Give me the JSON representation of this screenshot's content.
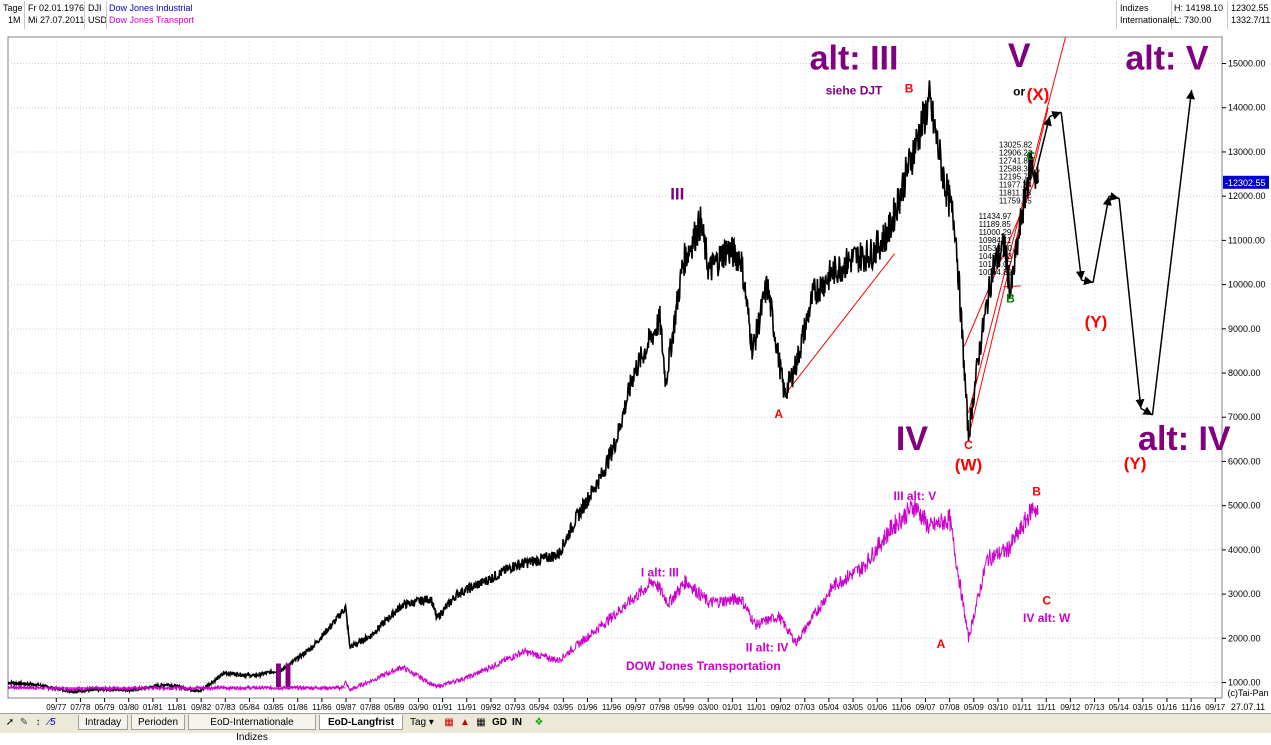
{
  "header": {
    "period_unit": "Tage",
    "start_date": "Fr 02.01.1976",
    "ticker_main": "DJI",
    "name_main": "Dow Jones Industrial",
    "interval": "1M",
    "end_date": "Mi 27.07.2011",
    "currency": "USD",
    "name_second": "Dow Jones Transport",
    "market_group": "Indizes",
    "market_sub": "Internationale",
    "high_label": "H: 14198.10",
    "low_label": "L: 730.00",
    "last_value": "12302.55",
    "last_value2": "1332.7/11"
  },
  "chart_data": {
    "type": "line",
    "xlabel": "",
    "ylabel": "",
    "ylim": [
      650,
      15600
    ],
    "x_range": [
      "1976-01",
      "2017-12"
    ],
    "grid": true,
    "legend_position": "top-left",
    "yticks": [
      1000,
      2000,
      3000,
      4000,
      5000,
      6000,
      7000,
      8000,
      9000,
      10000,
      11000,
      12000,
      13000,
      14000,
      15000
    ],
    "ytick_labels": [
      "1000.00",
      "2000.00",
      "3000.00",
      "4000.00",
      "5000.00",
      "6000.00",
      "7000.00",
      "8000.00",
      "9000.00",
      "10000.00",
      "11000.00",
      "12000.00",
      "13000.00",
      "14000.00",
      "15000.00"
    ],
    "xtick_labels": [
      "09/77",
      "07/78",
      "05/79",
      "03/80",
      "01/81",
      "11/81",
      "09/82",
      "07/83",
      "05/84",
      "03/85",
      "01/86",
      "11/86",
      "09/87",
      "07/88",
      "05/89",
      "03/90",
      "01/91",
      "11/91",
      "09/92",
      "07/93",
      "05/94",
      "03/95",
      "01/96",
      "11/96",
      "09/97",
      "07/98",
      "05/99",
      "03/00",
      "01/01",
      "11/01",
      "09/02",
      "07/03",
      "05/04",
      "03/05",
      "01/06",
      "11/06",
      "09/07",
      "07/08",
      "05/09",
      "03/10",
      "01/11",
      "11/11",
      "09/12",
      "07/13",
      "05/14",
      "03/15",
      "01/16",
      "11/16",
      "09/17"
    ],
    "last_price_label": "-12302.55",
    "credit": "(c)Tai-Pan",
    "end_date_label": "27.07.11",
    "series": [
      {
        "name": "Dow Jones Industrial",
        "color": "#000000",
        "x": [
          1976.0,
          1977.0,
          1978.2,
          1979.5,
          1980.3,
          1981.5,
          1982.6,
          1983.5,
          1984.5,
          1985.5,
          1986.5,
          1987.3,
          1987.65,
          1987.8,
          1988.5,
          1989.6,
          1990.6,
          1990.8,
          1991.5,
          1992.5,
          1993.5,
          1994.5,
          1995.0,
          1995.6,
          1996.5,
          1997.0,
          1997.6,
          1998.5,
          1998.7,
          1999.3,
          1999.9,
          2000.2,
          2000.8,
          2001.3,
          2001.7,
          2002.2,
          2002.8,
          2003.2,
          2003.8,
          2004.5,
          2005.2,
          2005.8,
          2006.4,
          2007.0,
          2007.8,
          2008.3,
          2008.7,
          2009.15,
          2009.5,
          2010.0,
          2010.4,
          2010.6,
          2011.0,
          2011.3,
          2011.55
        ],
        "y": [
          1000,
          950,
          800,
          850,
          830,
          960,
          800,
          1220,
          1150,
          1300,
          1800,
          2400,
          2700,
          1800,
          2050,
          2750,
          2900,
          2450,
          3000,
          3300,
          3650,
          3800,
          3900,
          4700,
          5700,
          6500,
          8000,
          9200,
          7800,
          10500,
          11400,
          10300,
          10800,
          10600,
          8500,
          10000,
          7500,
          8200,
          9800,
          10300,
          10600,
          10700,
          11200,
          12500,
          14150,
          12400,
          11300,
          6550,
          8400,
          10400,
          10900,
          9800,
          11600,
          12800,
          12300
        ]
      },
      {
        "name": "Dow Jones Transport",
        "color": "#cc00cc",
        "x": [
          1976.0,
          1978.0,
          1980.0,
          1982.6,
          1985.0,
          1987.5,
          1987.65,
          1987.8,
          1989.6,
          1990.8,
          1992.0,
          1993.8,
          1995.0,
          1996.5,
          1998.3,
          1998.8,
          1999.4,
          2000.2,
          2001.3,
          2001.8,
          2002.6,
          2003.2,
          2004.5,
          2005.5,
          2006.5,
          2007.3,
          2007.8,
          2008.5,
          2009.15,
          2009.8,
          2010.5,
          2011.0,
          2011.4,
          2011.55
        ],
        "y": [
          900,
          860,
          870,
          880,
          880,
          880,
          1000,
          830,
          1350,
          900,
          1150,
          1700,
          1500,
          2300,
          3300,
          2800,
          3300,
          2800,
          2900,
          2300,
          2500,
          1900,
          3200,
          3600,
          4500,
          5000,
          4500,
          4700,
          2000,
          3800,
          4000,
          4500,
          5000,
          4800
        ]
      }
    ],
    "trend_lines": [
      {
        "color": "#ff0000",
        "x": [
          2002.8,
          2006.6
        ],
        "y": [
          7500,
          10700
        ]
      },
      {
        "color": "#ff0000",
        "x": [
          2009.15,
          2011.9
        ],
        "y": [
          6550,
          14000
        ]
      },
      {
        "color": "#ff0000",
        "x": [
          2009.15,
          2012.5
        ],
        "y": [
          7100,
          15600
        ]
      },
      {
        "color": "#ff0000",
        "x": [
          2009.0,
          2011.6
        ],
        "y": [
          8600,
          12600
        ]
      },
      {
        "color": "#ff0000",
        "x": [
          2010.35,
          2010.95
        ],
        "y": [
          9950,
          9970
        ]
      }
    ],
    "forecast_path": {
      "color": "#000000",
      "x": [
        2011.5,
        2011.95,
        2012.35,
        2013.05,
        2013.45,
        2014.0,
        2014.35,
        2015.1,
        2015.5,
        2016.85
      ],
      "y": [
        12600,
        13800,
        13900,
        10100,
        10050,
        12000,
        11950,
        7200,
        7050,
        14400
      ]
    },
    "fib_levels_upper": [
      "13025.82",
      "12906.21",
      "12741.89",
      "12588.39",
      "12195.73",
      "11977.24",
      "11811.73",
      "11759.55"
    ],
    "fib_levels_lower": [
      "11434.97",
      "11189.85",
      "11000.29",
      "10984.11",
      "10538.30",
      "10408.73",
      "10165.07",
      "10064.89"
    ],
    "annotations": [
      {
        "text": "alt: III",
        "x": 2005.2,
        "y": 14860,
        "color": "#800080",
        "size": "big"
      },
      {
        "text": "siehe DJT",
        "x": 2005.2,
        "y": 14300,
        "color": "#800080",
        "size": "small"
      },
      {
        "text": "B",
        "x": 2007.1,
        "y": 14340,
        "color": "#ff0000",
        "size": "small"
      },
      {
        "text": "III",
        "x": 1999.1,
        "y": 11920,
        "color": "#800080",
        "size": "mid"
      },
      {
        "text": "V",
        "x": 2010.9,
        "y": 14920,
        "color": "#800080",
        "size": "big"
      },
      {
        "text": "or",
        "x": 2010.9,
        "y": 14280,
        "color": "#000000",
        "size": "small"
      },
      {
        "text": "(X)",
        "x": 2011.55,
        "y": 14170,
        "color": "#ff0000",
        "size": "mid"
      },
      {
        "text": "alt: V",
        "x": 2016.0,
        "y": 14860,
        "color": "#800080",
        "size": "big"
      },
      {
        "text": "C",
        "x": 2011.3,
        "y": 12820,
        "color": "#008000",
        "size": "small"
      },
      {
        "text": "B",
        "x": 2010.6,
        "y": 9600,
        "color": "#008000",
        "size": "small"
      },
      {
        "text": "A",
        "x": 2002.6,
        "y": 6980,
        "color": "#ff0000",
        "size": "small"
      },
      {
        "text": "C",
        "x": 2009.15,
        "y": 6280,
        "color": "#ff0000",
        "size": "small"
      },
      {
        "text": "IV",
        "x": 2007.2,
        "y": 6260,
        "color": "#800080",
        "size": "big"
      },
      {
        "text": "(W)",
        "x": 2009.15,
        "y": 5790,
        "color": "#ff0000",
        "size": "mid"
      },
      {
        "text": "(Y)",
        "x": 2013.55,
        "y": 9030,
        "color": "#ff0000",
        "size": "mid"
      },
      {
        "text": "(Y)",
        "x": 2014.9,
        "y": 5830,
        "color": "#ff0000",
        "size": "mid"
      },
      {
        "text": "alt: IV",
        "x": 2016.6,
        "y": 6260,
        "color": "#800080",
        "size": "big"
      },
      {
        "text": "III alt: V",
        "x": 2007.3,
        "y": 5130,
        "color": "#cc00cc",
        "size": "small"
      },
      {
        "text": "B",
        "x": 2011.5,
        "y": 5230,
        "color": "#ff0000",
        "size": "small"
      },
      {
        "text": "I  alt: III",
        "x": 1998.5,
        "y": 3400,
        "color": "#cc00cc",
        "size": "small"
      },
      {
        "text": "II alt: IV",
        "x": 2002.2,
        "y": 1700,
        "color": "#cc00cc",
        "size": "small"
      },
      {
        "text": "A",
        "x": 2008.2,
        "y": 1780,
        "color": "#ff0000",
        "size": "small"
      },
      {
        "text": "C",
        "x": 2011.85,
        "y": 2770,
        "color": "#ff0000",
        "size": "small"
      },
      {
        "text": "IV alt: W",
        "x": 2011.85,
        "y": 2370,
        "color": "#cc00cc",
        "size": "small"
      },
      {
        "text": "DOW Jones Transportation",
        "x": 2000.0,
        "y": 1280,
        "color": "#cc00cc",
        "size": "small"
      },
      {
        "text": "II",
        "x": 1985.5,
        "y": 900,
        "color": "#800080",
        "size": "big"
      }
    ]
  },
  "statusbar": {
    "tabs": [
      "Intraday",
      "Perioden",
      "EoD-Internationale Indizes",
      "EoD-Langfrist"
    ],
    "active_tab": "EoD-Langfrist",
    "period_select": "Tag",
    "btn_gd": "GD",
    "btn_in": "IN",
    "tool_icons": [
      "pointer-icon",
      "crosshair-icon",
      "chart-type-icon",
      "line-tool-icon",
      "indicator-icon",
      "marker-icon",
      "grid-icon",
      "cross-icon",
      "palette-icon"
    ]
  }
}
